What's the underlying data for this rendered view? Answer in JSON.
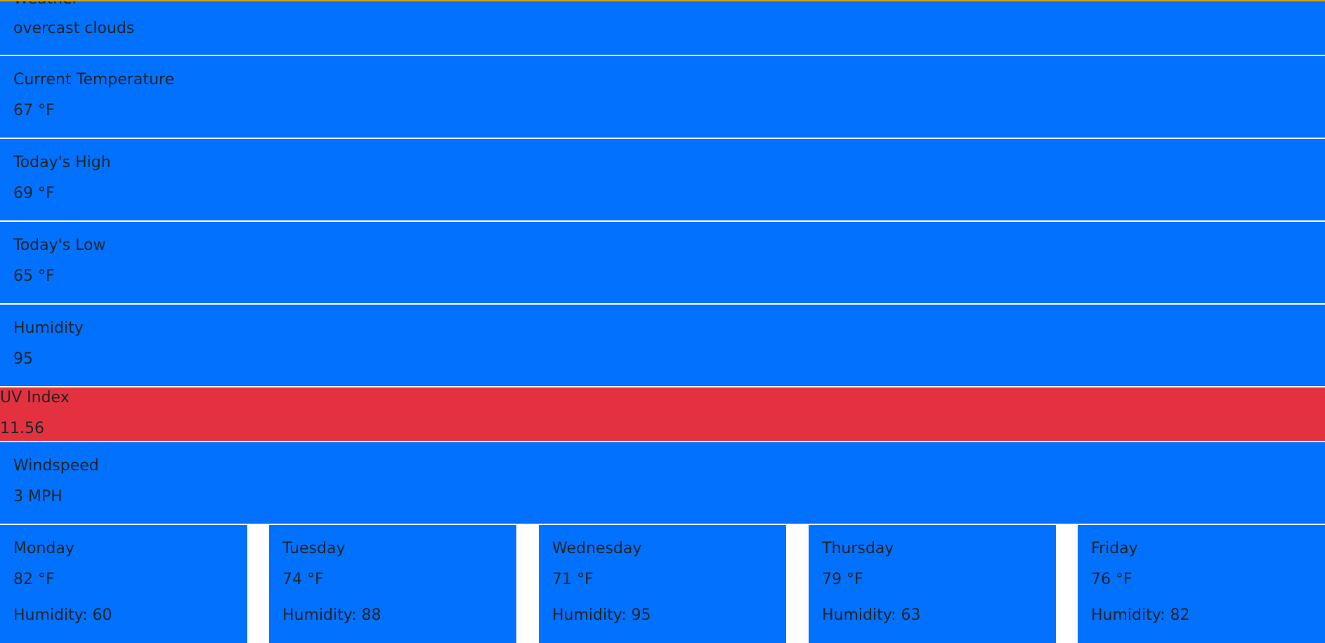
{
  "colors": {
    "panel": "#0171fe",
    "uv_alert": "#e3313f",
    "text": "#212529",
    "top_border": "#d4a017"
  },
  "current": {
    "weather": {
      "label": "Weather",
      "value": "overcast clouds"
    },
    "temperature": {
      "label": "Current Temperature",
      "value": "67 °F"
    },
    "high": {
      "label": "Today's High",
      "value": "69 °F"
    },
    "low": {
      "label": "Today's Low",
      "value": "65 °F"
    },
    "humidity": {
      "label": "Humidity",
      "value": "95"
    },
    "uv": {
      "label": "UV Index",
      "value": "11.56"
    },
    "windspeed": {
      "label": "Windspeed",
      "value": "3 MPH"
    }
  },
  "forecast": [
    {
      "day": "Monday",
      "temp": "82 °F",
      "humidity": "Humidity: 60"
    },
    {
      "day": "Tuesday",
      "temp": "74 °F",
      "humidity": "Humidity: 88"
    },
    {
      "day": "Wednesday",
      "temp": "71 °F",
      "humidity": "Humidity: 95"
    },
    {
      "day": "Thursday",
      "temp": "79 °F",
      "humidity": "Humidity: 63"
    },
    {
      "day": "Friday",
      "temp": "76 °F",
      "humidity": "Humidity: 82"
    }
  ]
}
